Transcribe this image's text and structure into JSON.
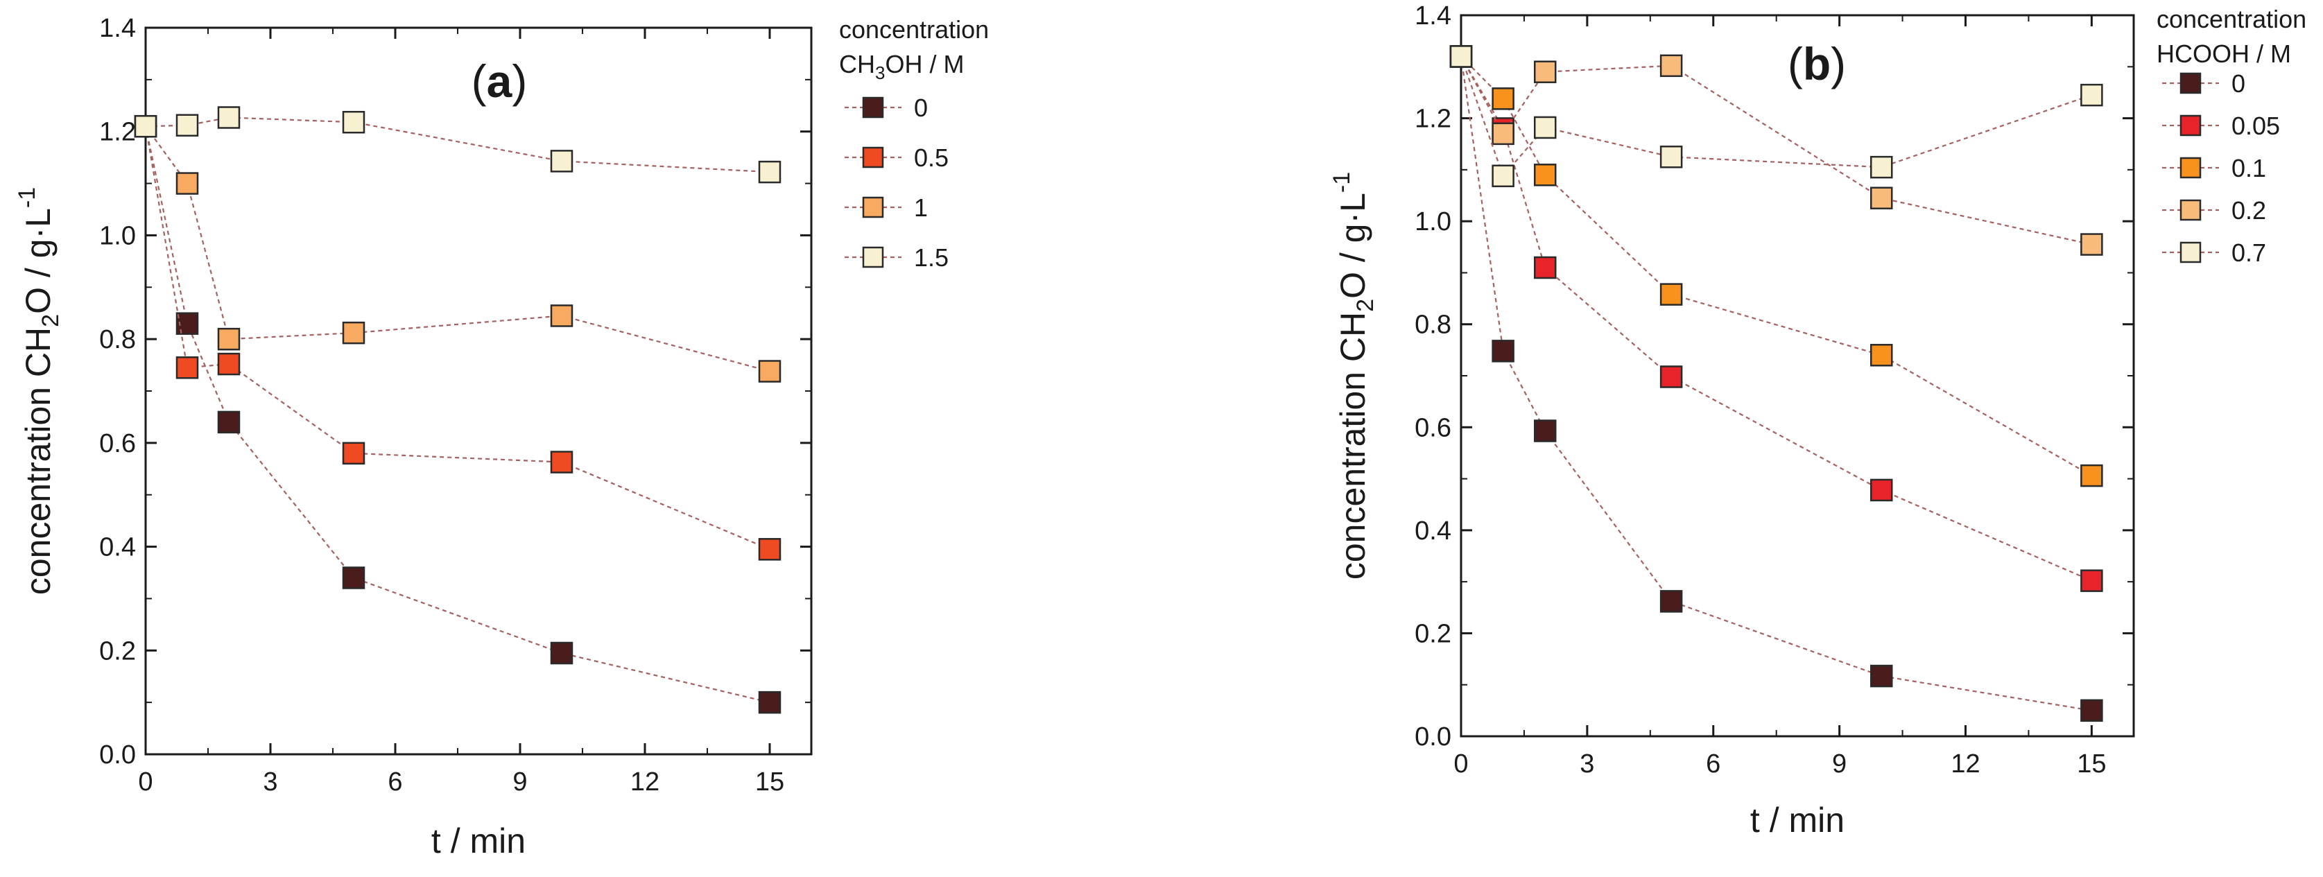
{
  "chart_data": [
    {
      "type": "scatter",
      "panel_label": {
        "open": "(",
        "letter": "a",
        "close": ")"
      },
      "xlabel": "t / min",
      "ylabel": "concentration CH2O / g·L-1",
      "ylabel_parts": {
        "a": "concentration CH",
        "sub": "2",
        "b": "O / g·L",
        "sup": "-1"
      },
      "xlim": [
        0,
        16
      ],
      "ylim": [
        0.0,
        1.4
      ],
      "xticks": [
        0,
        3,
        6,
        9,
        12,
        15
      ],
      "xtick_labels": [
        "0",
        "3",
        "6",
        "9",
        "12",
        "15"
      ],
      "yticks": [
        0.0,
        0.2,
        0.4,
        0.6,
        0.8,
        1.0,
        1.2,
        1.4
      ],
      "ytick_labels": [
        "0.0",
        "0.2",
        "0.4",
        "0.6",
        "0.8",
        "1.0",
        "1.2",
        "1.4"
      ],
      "legend": {
        "title_line1": "concentration",
        "title_line2_parts": {
          "a": "CH",
          "sub": "3",
          "b": "OH / M"
        },
        "position": "outside-top-right"
      },
      "x": [
        0,
        1,
        2,
        5,
        10,
        15
      ],
      "series": [
        {
          "name": "0",
          "color": "#4a1c1c",
          "values": [
            1.21,
            0.83,
            0.64,
            0.34,
            0.195,
            0.1
          ]
        },
        {
          "name": "0.5",
          "color": "#f04a22",
          "values": [
            1.21,
            0.745,
            0.752,
            0.58,
            0.563,
            0.395
          ]
        },
        {
          "name": "1",
          "color": "#f7aa60",
          "values": [
            1.21,
            1.1,
            0.8,
            0.812,
            0.845,
            0.738
          ]
        },
        {
          "name": "1.5",
          "color": "#f7f1d2",
          "values": [
            1.21,
            1.212,
            1.227,
            1.218,
            1.143,
            1.122
          ]
        }
      ],
      "line_color": "#a56060"
    },
    {
      "type": "scatter",
      "panel_label": {
        "open": "(",
        "letter": "b",
        "close": ")"
      },
      "xlabel": "t / min",
      "ylabel": "concentration CH2O / g·L-1",
      "ylabel_parts": {
        "a": "concentration CH",
        "sub": "2",
        "b": "O / g·L",
        "sup": "-1"
      },
      "xlim": [
        0,
        16
      ],
      "ylim": [
        0.0,
        1.4
      ],
      "xticks": [
        0,
        3,
        6,
        9,
        12,
        15
      ],
      "xtick_labels": [
        "0",
        "3",
        "6",
        "9",
        "12",
        "15"
      ],
      "yticks": [
        0.0,
        0.2,
        0.4,
        0.6,
        0.8,
        1.0,
        1.2,
        1.4
      ],
      "ytick_labels": [
        "0.0",
        "0.2",
        "0.4",
        "0.6",
        "0.8",
        "1.0",
        "1.2",
        "1.4"
      ],
      "legend": {
        "title_line1": "concentration",
        "title_line2": "HCOOH / M",
        "position": "outside-top-right"
      },
      "x": [
        0,
        1,
        2,
        5,
        10,
        15
      ],
      "series": [
        {
          "name": "0",
          "color": "#4a1c1c",
          "values": [
            1.32,
            0.748,
            0.593,
            0.262,
            0.117,
            0.05
          ]
        },
        {
          "name": "0.05",
          "color": "#e8242a",
          "values": [
            1.32,
            1.18,
            0.91,
            0.698,
            0.478,
            0.302
          ]
        },
        {
          "name": "0.1",
          "color": "#f7921e",
          "values": [
            1.32,
            1.238,
            1.09,
            0.858,
            0.74,
            0.506
          ]
        },
        {
          "name": "0.2",
          "color": "#f8bb7c",
          "values": [
            1.32,
            1.17,
            1.29,
            1.302,
            1.045,
            0.955
          ]
        },
        {
          "name": "0.7",
          "color": "#f7f1d2",
          "values": [
            1.32,
            1.088,
            1.182,
            1.125,
            1.105,
            1.245
          ]
        }
      ],
      "line_color": "#a56060"
    }
  ]
}
